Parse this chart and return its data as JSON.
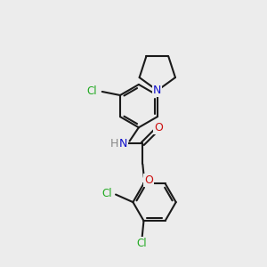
{
  "background_color": "#ececec",
  "bond_color": "#1a1a1a",
  "bond_width": 1.5,
  "colors": {
    "N": "#1010cc",
    "O": "#cc1010",
    "Cl": "#22aa22",
    "NH_color": "#888888"
  },
  "figsize": [
    3.0,
    3.0
  ],
  "dpi": 100
}
